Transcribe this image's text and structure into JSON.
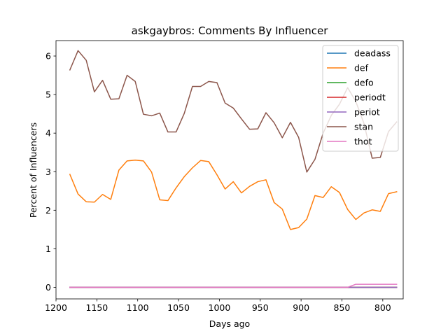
{
  "chart_data": {
    "type": "line",
    "title": "askgaybros: Comments By Influencer",
    "xlabel": "Days ago",
    "ylabel": "Percent of Influencers",
    "xlim": [
      1200,
      775
    ],
    "ylim": [
      -0.3,
      6.4
    ],
    "x_reversed": true,
    "grid": false,
    "legend_position": "top-right",
    "xticks": [
      1200,
      1150,
      1100,
      1050,
      1000,
      950,
      900,
      850,
      800
    ],
    "yticks": [
      0,
      1,
      2,
      3,
      4,
      5,
      6
    ],
    "x": [
      1183,
      1173,
      1163,
      1153,
      1143,
      1133,
      1123,
      1113,
      1103,
      1093,
      1083,
      1073,
      1063,
      1053,
      1043,
      1033,
      1023,
      1013,
      1003,
      993,
      983,
      973,
      963,
      953,
      943,
      933,
      923,
      913,
      903,
      893,
      883,
      873,
      863,
      853,
      843,
      833,
      823,
      813,
      803,
      793,
      783
    ],
    "series": [
      {
        "name": "deadass",
        "color": "#1f77b4",
        "values": [
          0,
          0,
          0,
          0,
          0,
          0,
          0,
          0,
          0,
          0,
          0,
          0,
          0,
          0,
          0,
          0,
          0,
          0,
          0,
          0,
          0,
          0,
          0,
          0,
          0,
          0,
          0,
          0,
          0,
          0,
          0,
          0,
          0,
          0,
          0,
          0,
          0,
          0,
          0,
          0,
          0
        ]
      },
      {
        "name": "def",
        "color": "#ff7f0e",
        "values": [
          2.93,
          2.42,
          2.22,
          2.21,
          2.41,
          2.28,
          3.04,
          3.28,
          3.3,
          3.28,
          2.99,
          2.27,
          2.25,
          2.58,
          2.87,
          3.1,
          3.29,
          3.26,
          2.92,
          2.55,
          2.74,
          2.45,
          2.62,
          2.74,
          2.79,
          2.2,
          2.03,
          1.5,
          1.55,
          1.77,
          2.38,
          2.33,
          2.61,
          2.46,
          2.02,
          1.76,
          1.93,
          2.01,
          1.97,
          2.43,
          2.48
        ]
      },
      {
        "name": "defo",
        "color": "#2ca02c",
        "values": [
          0,
          0,
          0,
          0,
          0,
          0,
          0,
          0,
          0,
          0,
          0,
          0,
          0,
          0,
          0,
          0,
          0,
          0,
          0,
          0,
          0,
          0,
          0,
          0,
          0,
          0,
          0,
          0,
          0,
          0,
          0,
          0,
          0,
          0,
          0,
          0,
          0,
          0,
          0,
          0,
          0
        ]
      },
      {
        "name": "periodt",
        "color": "#d62728",
        "values": [
          0,
          0,
          0,
          0,
          0,
          0,
          0,
          0,
          0,
          0,
          0,
          0,
          0,
          0,
          0,
          0,
          0,
          0,
          0,
          0,
          0,
          0,
          0,
          0,
          0,
          0,
          0,
          0,
          0,
          0,
          0,
          0,
          0,
          0,
          0,
          0,
          0,
          0,
          0,
          0,
          0
        ]
      },
      {
        "name": "periot",
        "color": "#9467bd",
        "values": [
          0,
          0,
          0,
          0,
          0,
          0,
          0,
          0,
          0,
          0,
          0,
          0,
          0,
          0,
          0,
          0,
          0,
          0,
          0,
          0,
          0,
          0,
          0,
          0,
          0,
          0,
          0,
          0,
          0,
          0,
          0,
          0,
          0,
          0,
          0,
          0,
          0,
          0,
          0,
          0,
          0
        ]
      },
      {
        "name": "stan",
        "color": "#8c564b",
        "values": [
          5.64,
          6.14,
          5.89,
          5.07,
          5.37,
          4.88,
          4.89,
          5.5,
          5.34,
          4.49,
          4.45,
          4.52,
          4.03,
          4.03,
          4.51,
          5.21,
          5.21,
          5.34,
          5.31,
          4.78,
          4.65,
          4.37,
          4.1,
          4.11,
          4.53,
          4.27,
          3.88,
          4.28,
          3.89,
          2.99,
          3.32,
          4.0,
          4.46,
          4.75,
          5.18,
          4.82,
          4.25,
          3.35,
          3.37,
          4.04,
          4.29
        ]
      },
      {
        "name": "thot",
        "color": "#e377c2",
        "values": [
          0,
          0,
          0,
          0,
          0,
          0,
          0,
          0,
          0,
          0,
          0,
          0,
          0,
          0,
          0,
          0,
          0,
          0,
          0,
          0,
          0,
          0,
          0,
          0,
          0,
          0,
          0,
          0,
          0,
          0,
          0,
          0,
          0,
          0,
          0,
          0.08,
          0.08,
          0.08,
          0.08,
          0.08,
          0.08
        ]
      }
    ]
  }
}
